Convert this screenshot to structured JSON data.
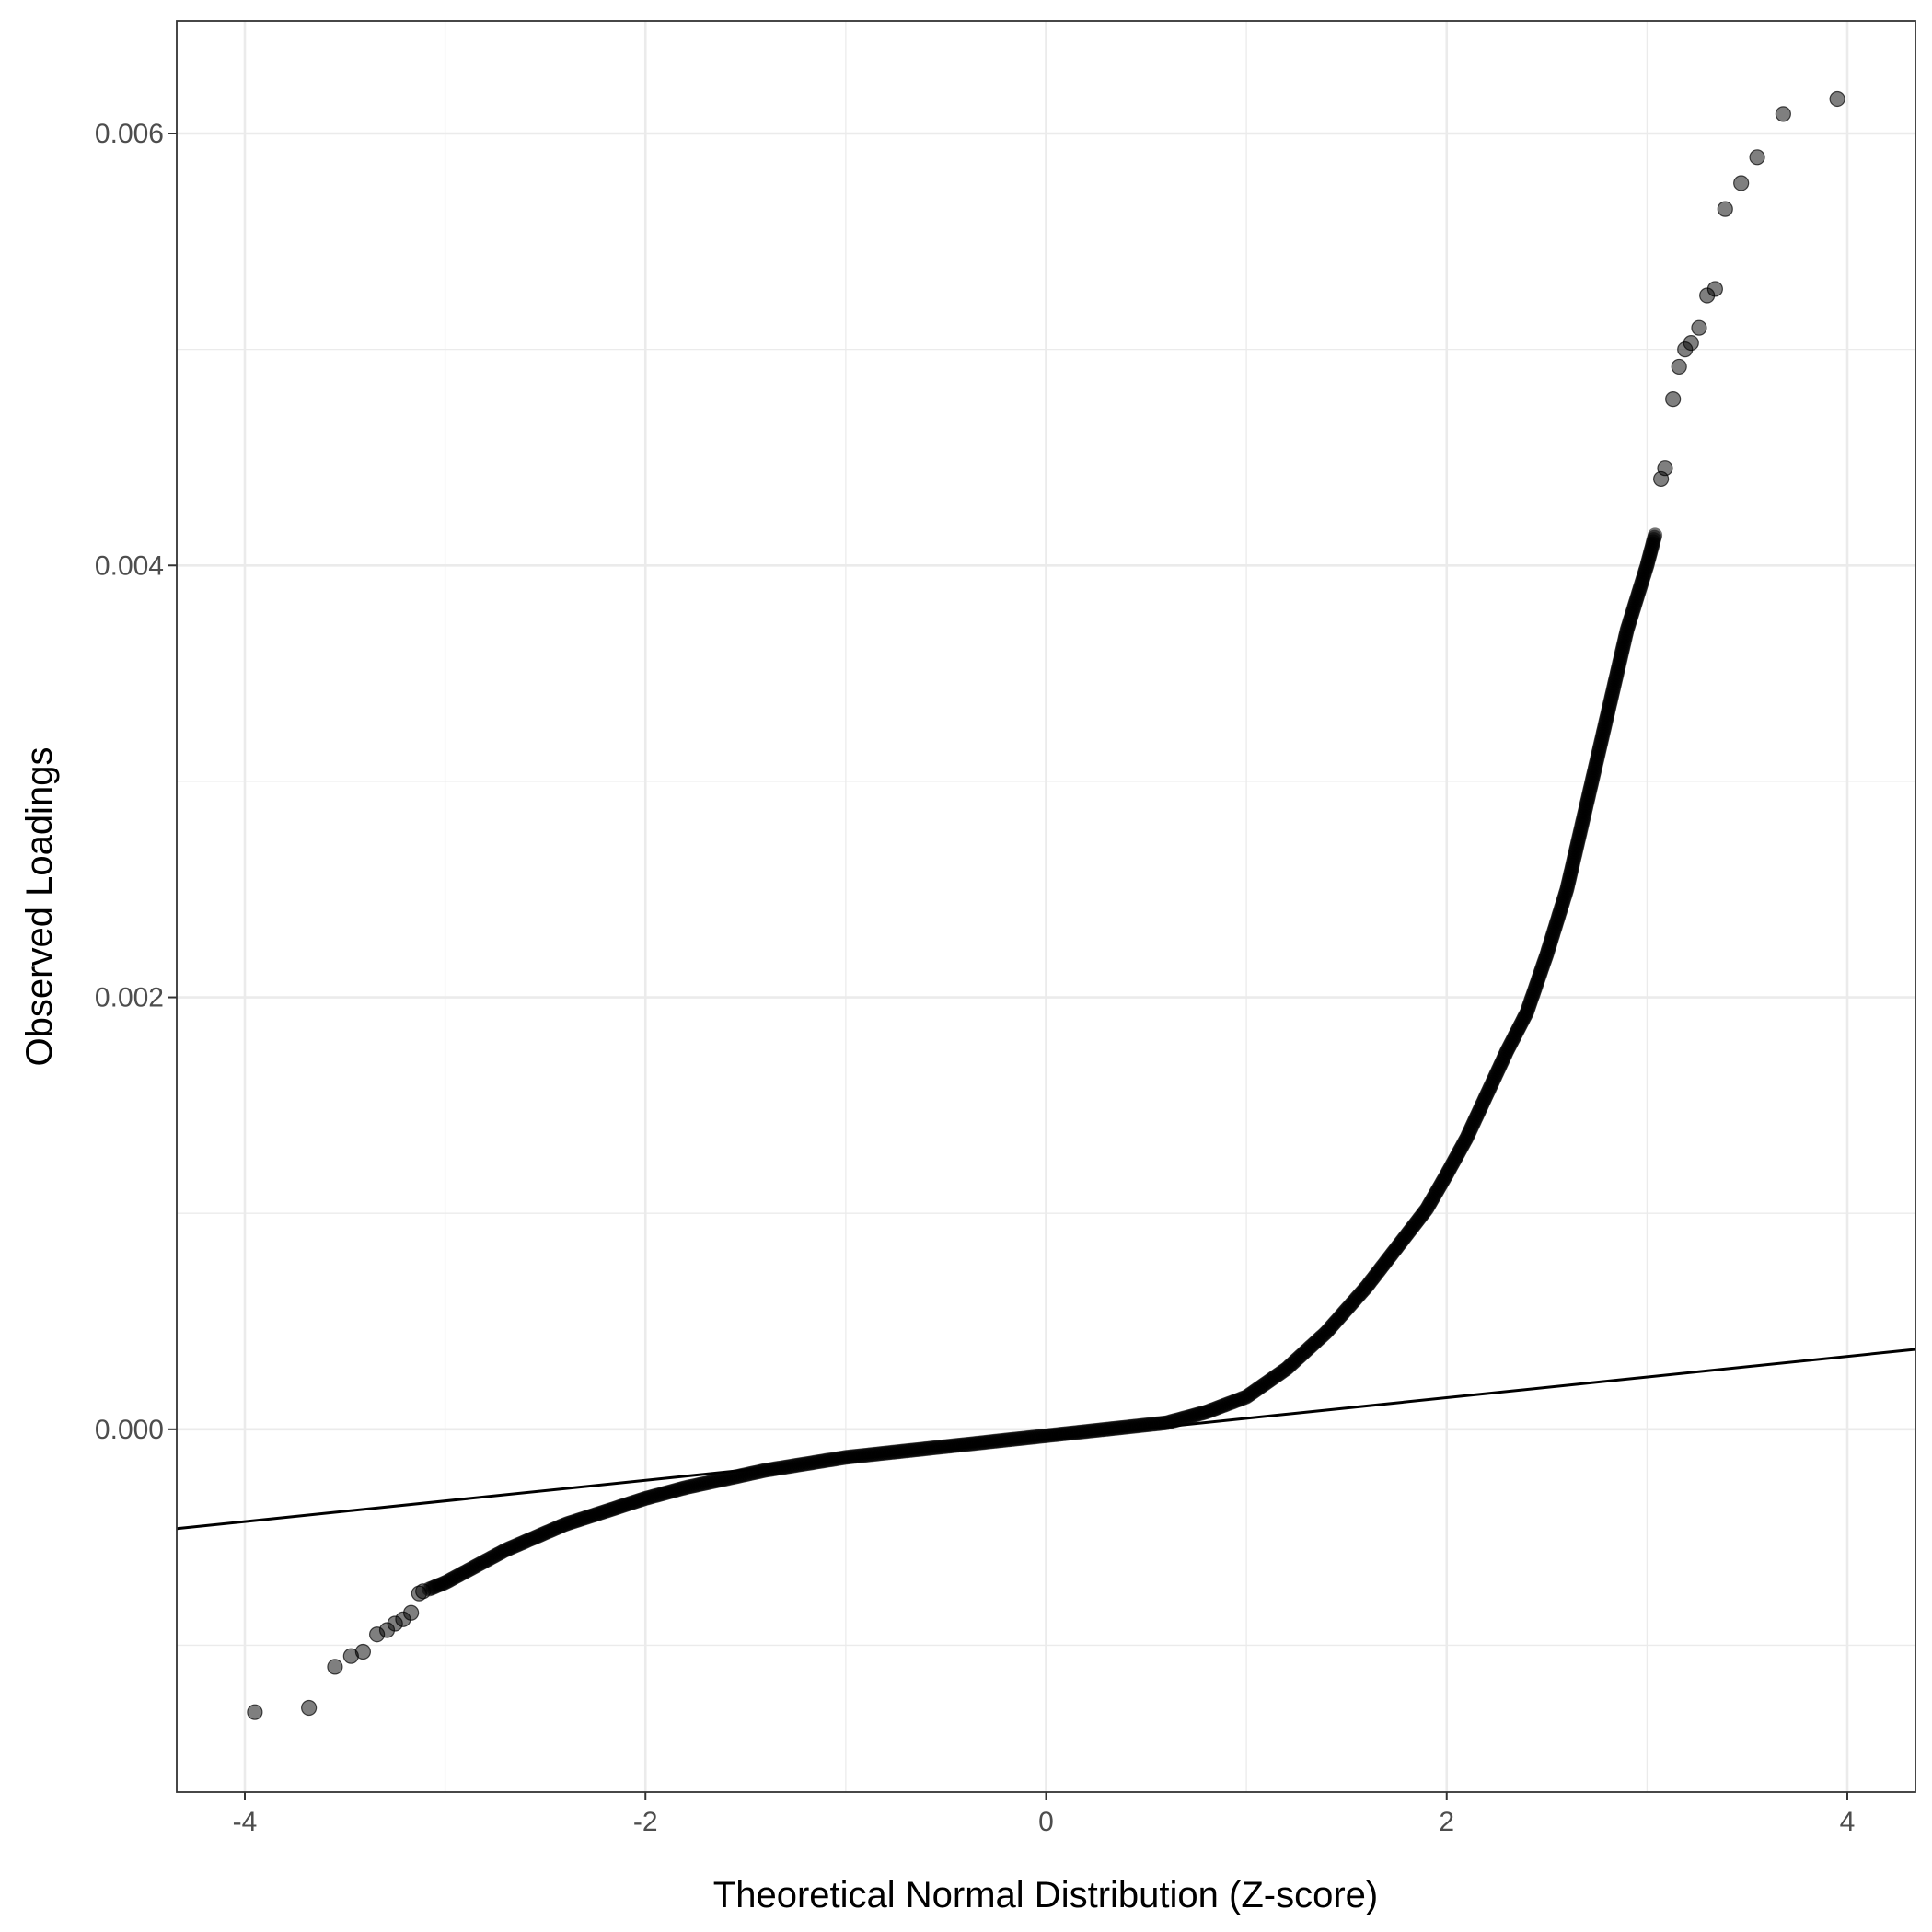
{
  "chart_data": {
    "type": "scatter",
    "title": "",
    "xlabel": "Theoretical Normal Distribution (Z-score)",
    "ylabel": "Observed Loadings",
    "xlim": [
      -4.34,
      4.34
    ],
    "ylim": [
      -0.00168,
      0.00652
    ],
    "x_ticks": [
      -4,
      -2,
      0,
      2,
      4
    ],
    "x_tick_labels": [
      "-4",
      "-2",
      "0",
      "2",
      "4"
    ],
    "y_ticks": [
      0,
      0.002,
      0.004,
      0.006
    ],
    "y_tick_labels": [
      "0.000",
      "0.002",
      "0.004",
      "0.006"
    ],
    "grid": true,
    "legend": "none",
    "point_color": "#000000",
    "point_alpha": 0.5,
    "line_color": "#000000",
    "reference_line": {
      "x": [
        -4.34,
        4.34
      ],
      "y": [
        -0.00046,
        0.00037
      ]
    },
    "tail_points": {
      "x": [
        -3.95,
        -3.68,
        -3.55,
        -3.47,
        -3.41,
        -3.34,
        -3.29,
        -3.25,
        -3.21,
        -3.17,
        -3.13,
        -3.11,
        3.07,
        3.09,
        3.13,
        3.16,
        3.19,
        3.22,
        3.26,
        3.3,
        3.34,
        3.39,
        3.47,
        3.55,
        3.68,
        3.95
      ],
      "y": [
        -0.00131,
        -0.00129,
        -0.0011,
        -0.00105,
        -0.00103,
        -0.00095,
        -0.00093,
        -0.0009,
        -0.00088,
        -0.00085,
        -0.00076,
        -0.00075,
        0.0044,
        0.00445,
        0.00477,
        0.00492,
        0.005,
        0.00503,
        0.0051,
        0.00525,
        0.00528,
        0.00565,
        0.00577,
        0.00589,
        0.00609,
        0.00616
      ]
    },
    "body_curve": {
      "x": [
        -3.08,
        -3.0,
        -2.9,
        -2.8,
        -2.7,
        -2.6,
        -2.5,
        -2.4,
        -2.3,
        -2.2,
        -2.1,
        -2.0,
        -1.8,
        -1.6,
        -1.4,
        -1.2,
        -1.0,
        -0.8,
        -0.6,
        -0.4,
        -0.2,
        0.0,
        0.2,
        0.4,
        0.6,
        0.8,
        1.0,
        1.2,
        1.4,
        1.6,
        1.7,
        1.8,
        1.9,
        2.0,
        2.1,
        2.2,
        2.3,
        2.4,
        2.5,
        2.6,
        2.7,
        2.8,
        2.9,
        3.0,
        3.04
      ],
      "y": [
        -0.00074,
        -0.00071,
        -0.00066,
        -0.00061,
        -0.00056,
        -0.00052,
        -0.00048,
        -0.00044,
        -0.00041,
        -0.00038,
        -0.00035,
        -0.00032,
        -0.00027,
        -0.00023,
        -0.00019,
        -0.00016,
        -0.00013,
        -0.00011,
        -9e-05,
        -7e-05,
        -5e-05,
        -3e-05,
        -1e-05,
        1e-05,
        3e-05,
        8e-05,
        0.00015,
        0.00028,
        0.00045,
        0.00066,
        0.00078,
        0.0009,
        0.00102,
        0.00118,
        0.00135,
        0.00155,
        0.00175,
        0.00193,
        0.0022,
        0.0025,
        0.0029,
        0.0033,
        0.0037,
        0.004,
        0.00414
      ]
    }
  }
}
